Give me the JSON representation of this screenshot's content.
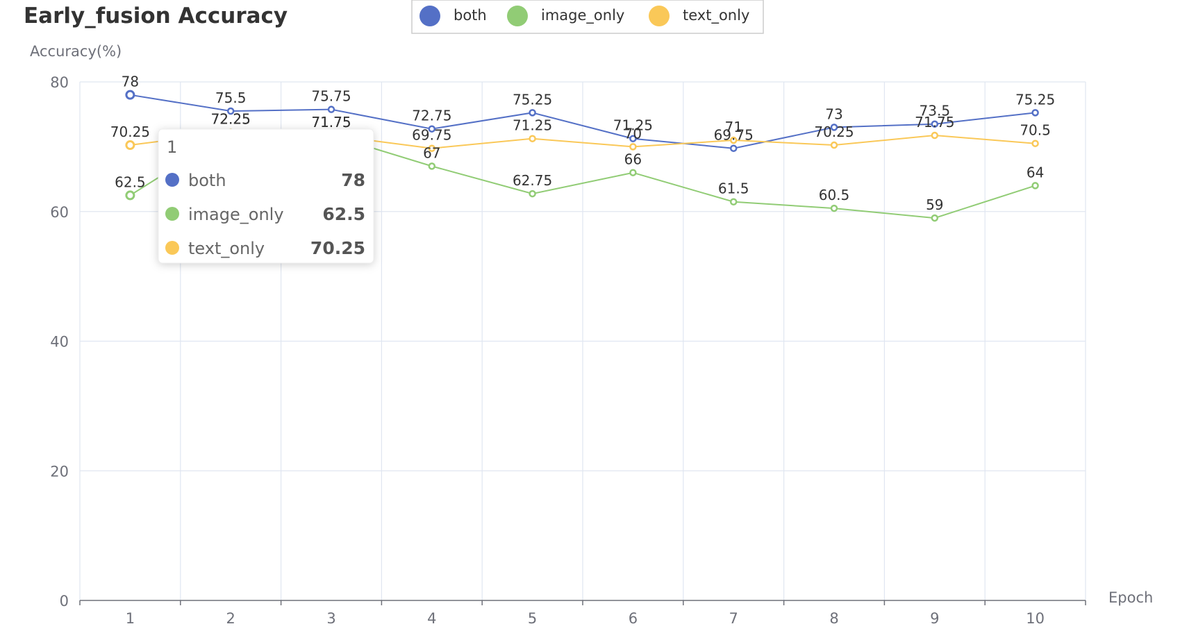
{
  "chart_data": {
    "type": "line",
    "title": "Early_fusion Accuracy",
    "xlabel": "Epoch",
    "ylabel": "Accuracy(%)",
    "ylim": [
      0,
      80
    ],
    "yticks": [
      0,
      20,
      40,
      60,
      80
    ],
    "categories": [
      "1",
      "2",
      "3",
      "4",
      "5",
      "6",
      "7",
      "8",
      "9",
      "10"
    ],
    "grid": true,
    "legend_position": "top-center",
    "series": [
      {
        "name": "both",
        "color": "#5470c6",
        "values": [
          78,
          75.5,
          75.75,
          72.75,
          75.25,
          71.25,
          69.75,
          73,
          73.5,
          75.25
        ]
      },
      {
        "name": "image_only",
        "color": "#91cc75",
        "values": [
          62.5,
          72.25,
          71.75,
          67,
          62.75,
          66,
          61.5,
          60.5,
          59,
          64
        ]
      },
      {
        "name": "text_only",
        "color": "#fac858",
        "values": [
          70.25,
          72.25,
          71.75,
          69.75,
          71.25,
          70,
          71,
          70.25,
          71.75,
          70.5
        ]
      }
    ],
    "tooltip": {
      "category": "1",
      "rows": [
        {
          "name": "both",
          "value": "78",
          "color": "#5470c6"
        },
        {
          "name": "image_only",
          "value": "62.5",
          "color": "#91cc75"
        },
        {
          "name": "text_only",
          "value": "70.25",
          "color": "#fac858"
        }
      ]
    }
  }
}
